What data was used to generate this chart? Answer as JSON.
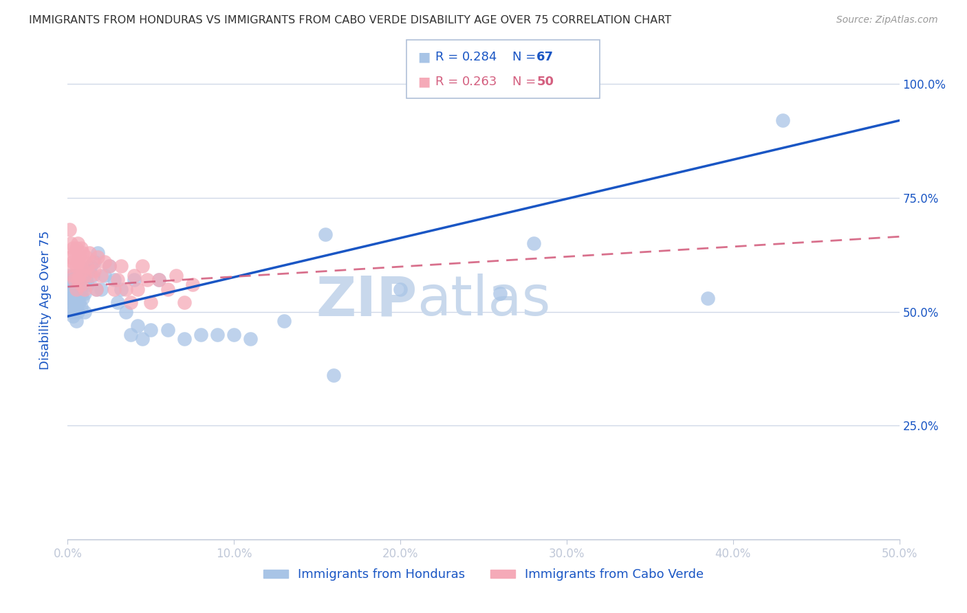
{
  "title": "IMMIGRANTS FROM HONDURAS VS IMMIGRANTS FROM CABO VERDE DISABILITY AGE OVER 75 CORRELATION CHART",
  "source": "Source: ZipAtlas.com",
  "ylabel_label": "Disability Age Over 75",
  "xlim": [
    0.0,
    0.5
  ],
  "ylim": [
    0.0,
    1.05
  ],
  "x_ticks": [
    0.0,
    0.1,
    0.2,
    0.3,
    0.4,
    0.5
  ],
  "x_tick_labels": [
    "0.0%",
    "10.0%",
    "20.0%",
    "30.0%",
    "40.0%",
    "50.0%"
  ],
  "y_ticks": [
    0.0,
    0.25,
    0.5,
    0.75,
    1.0
  ],
  "y_tick_labels_right": [
    "",
    "25.0%",
    "50.0%",
    "75.0%",
    "100.0%"
  ],
  "legend_r_honduras": "0.284",
  "legend_n_honduras": "67",
  "legend_r_caboverde": "0.263",
  "legend_n_caboverde": "50",
  "honduras_color": "#a8c4e6",
  "caboverde_color": "#f5aab8",
  "honduras_line_color": "#1a56c4",
  "caboverde_line_color": "#d46080",
  "watermark_zip": "ZIP",
  "watermark_atlas": "atlas",
  "watermark_color": "#c8d8ec",
  "background_color": "#ffffff",
  "grid_color": "#d0d8e8",
  "title_color": "#303030",
  "axis_label_color": "#1a56c4",
  "tick_label_color": "#1a56c4",
  "honduras_line_intercept": 0.49,
  "honduras_line_slope": 0.86,
  "caboverde_line_intercept": 0.555,
  "caboverde_line_slope": 0.22,
  "honduras_x": [
    0.001,
    0.001,
    0.001,
    0.002,
    0.002,
    0.002,
    0.002,
    0.003,
    0.003,
    0.003,
    0.003,
    0.003,
    0.004,
    0.004,
    0.004,
    0.004,
    0.005,
    0.005,
    0.005,
    0.005,
    0.006,
    0.006,
    0.006,
    0.007,
    0.007,
    0.007,
    0.008,
    0.008,
    0.009,
    0.009,
    0.01,
    0.01,
    0.011,
    0.012,
    0.013,
    0.014,
    0.015,
    0.016,
    0.017,
    0.018,
    0.02,
    0.022,
    0.025,
    0.028,
    0.03,
    0.032,
    0.035,
    0.038,
    0.04,
    0.042,
    0.045,
    0.05,
    0.055,
    0.06,
    0.07,
    0.08,
    0.09,
    0.1,
    0.11,
    0.13,
    0.155,
    0.16,
    0.2,
    0.26,
    0.28,
    0.385,
    0.43
  ],
  "honduras_y": [
    0.53,
    0.55,
    0.58,
    0.5,
    0.52,
    0.54,
    0.57,
    0.49,
    0.51,
    0.53,
    0.56,
    0.58,
    0.5,
    0.52,
    0.55,
    0.57,
    0.48,
    0.51,
    0.54,
    0.56,
    0.5,
    0.53,
    0.56,
    0.52,
    0.55,
    0.58,
    0.51,
    0.54,
    0.53,
    0.56,
    0.5,
    0.54,
    0.57,
    0.56,
    0.59,
    0.6,
    0.58,
    0.61,
    0.55,
    0.63,
    0.55,
    0.58,
    0.6,
    0.57,
    0.52,
    0.55,
    0.5,
    0.45,
    0.57,
    0.47,
    0.44,
    0.46,
    0.57,
    0.46,
    0.44,
    0.45,
    0.45,
    0.45,
    0.44,
    0.48,
    0.67,
    0.36,
    0.55,
    0.54,
    0.65,
    0.53,
    0.92
  ],
  "caboverde_x": [
    0.001,
    0.001,
    0.002,
    0.002,
    0.003,
    0.003,
    0.003,
    0.004,
    0.004,
    0.005,
    0.005,
    0.005,
    0.006,
    0.006,
    0.006,
    0.007,
    0.007,
    0.008,
    0.008,
    0.008,
    0.009,
    0.009,
    0.01,
    0.01,
    0.011,
    0.012,
    0.013,
    0.014,
    0.015,
    0.016,
    0.017,
    0.018,
    0.02,
    0.022,
    0.025,
    0.028,
    0.03,
    0.032,
    0.035,
    0.038,
    0.04,
    0.042,
    0.045,
    0.048,
    0.05,
    0.055,
    0.06,
    0.065,
    0.07,
    0.075
  ],
  "caboverde_y": [
    0.68,
    0.6,
    0.62,
    0.65,
    0.58,
    0.61,
    0.64,
    0.57,
    0.63,
    0.6,
    0.55,
    0.64,
    0.57,
    0.61,
    0.65,
    0.58,
    0.62,
    0.56,
    0.6,
    0.64,
    0.59,
    0.63,
    0.55,
    0.58,
    0.62,
    0.6,
    0.63,
    0.58,
    0.61,
    0.59,
    0.55,
    0.62,
    0.58,
    0.61,
    0.6,
    0.55,
    0.57,
    0.6,
    0.55,
    0.52,
    0.58,
    0.55,
    0.6,
    0.57,
    0.52,
    0.57,
    0.55,
    0.58,
    0.52,
    0.56
  ]
}
